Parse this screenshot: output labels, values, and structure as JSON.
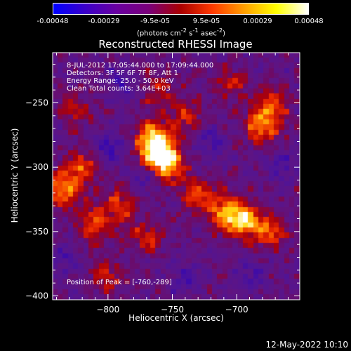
{
  "colorbar": {
    "ticks": [
      "-0.00048",
      "-0.00029",
      "-9.5e-05",
      "9.5e-05",
      "0.00029",
      "0.00048"
    ],
    "unit_html": "(photons cm<sup>-2</sup> s<sup>-1</sup> asec<sup>-2</sup>)",
    "colors": [
      "#0000ff",
      "#3b00c8",
      "#6a00a0",
      "#7a007a",
      "#aa0000",
      "#ff3a00",
      "#ffa000",
      "#ffff00",
      "#ffffff"
    ]
  },
  "info": {
    "time_range": "8-JUL-2012 17:05:44.000 to 17:09:44.000",
    "detectors": "Detectors: 3F 5F 6F 7F 8F, Att 1",
    "energy_range": "Energy Range: 25.0 - 50.0 keV",
    "clean_counts": "Clean    Total counts: 3.64E+03",
    "peak_position": "Position of Peak = [-760,-289]"
  },
  "timestamp": "12-May-2022 10:10",
  "chart_data": {
    "type": "heatmap",
    "title": "Reconstructed RHESSI Image",
    "xlabel": "Heliocentric X (arcsec)",
    "ylabel": "Heliocentric Y (arcsec)",
    "xlim": [
      -843,
      -651
    ],
    "ylim": [
      -403,
      -211
    ],
    "xticks": [
      -800,
      -750,
      -700
    ],
    "yticks": [
      -250,
      -300,
      -350,
      -400
    ],
    "xtick_labels": [
      "−800",
      "−750",
      "−700"
    ],
    "ytick_labels": [
      "−250",
      "−300",
      "−350",
      "−400"
    ],
    "zlim": [
      -0.00048,
      0.00048
    ],
    "peak": {
      "x": -760,
      "y": -289
    },
    "grid_cells": 48,
    "hotspots": [
      {
        "x": -760,
        "y": -289,
        "amp": 1.0
      },
      {
        "x": -765,
        "y": -277,
        "amp": 0.7
      },
      {
        "x": -752,
        "y": -300,
        "amp": 0.55
      },
      {
        "x": -695,
        "y": -341,
        "amp": 0.85
      },
      {
        "x": -710,
        "y": -335,
        "amp": 0.6
      },
      {
        "x": -675,
        "y": -350,
        "amp": 0.55
      },
      {
        "x": -680,
        "y": -268,
        "amp": 0.65
      },
      {
        "x": -672,
        "y": -252,
        "amp": 0.5
      },
      {
        "x": -835,
        "y": -318,
        "amp": 0.7
      },
      {
        "x": -820,
        "y": -300,
        "amp": 0.5
      },
      {
        "x": -810,
        "y": -345,
        "amp": 0.55
      },
      {
        "x": -790,
        "y": -330,
        "amp": 0.45
      },
      {
        "x": -770,
        "y": -355,
        "amp": 0.4
      },
      {
        "x": -730,
        "y": -322,
        "amp": 0.45
      },
      {
        "x": -800,
        "y": -385,
        "amp": 0.35
      },
      {
        "x": -705,
        "y": -235,
        "amp": 0.35
      },
      {
        "x": -760,
        "y": -240,
        "amp": 0.3
      },
      {
        "x": -740,
        "y": -260,
        "amp": 0.35
      },
      {
        "x": -825,
        "y": -255,
        "amp": 0.35
      }
    ],
    "coldspots": [
      {
        "x": -800,
        "y": -285,
        "amp": 0.6
      },
      {
        "x": -720,
        "y": -280,
        "amp": 0.55
      },
      {
        "x": -770,
        "y": -310,
        "amp": 0.45
      },
      {
        "x": -790,
        "y": -235,
        "amp": 0.5
      },
      {
        "x": -665,
        "y": -300,
        "amp": 0.5
      },
      {
        "x": -740,
        "y": -385,
        "amp": 0.45
      },
      {
        "x": -690,
        "y": -385,
        "amp": 0.4
      },
      {
        "x": -835,
        "y": -372,
        "amp": 0.45
      }
    ]
  }
}
